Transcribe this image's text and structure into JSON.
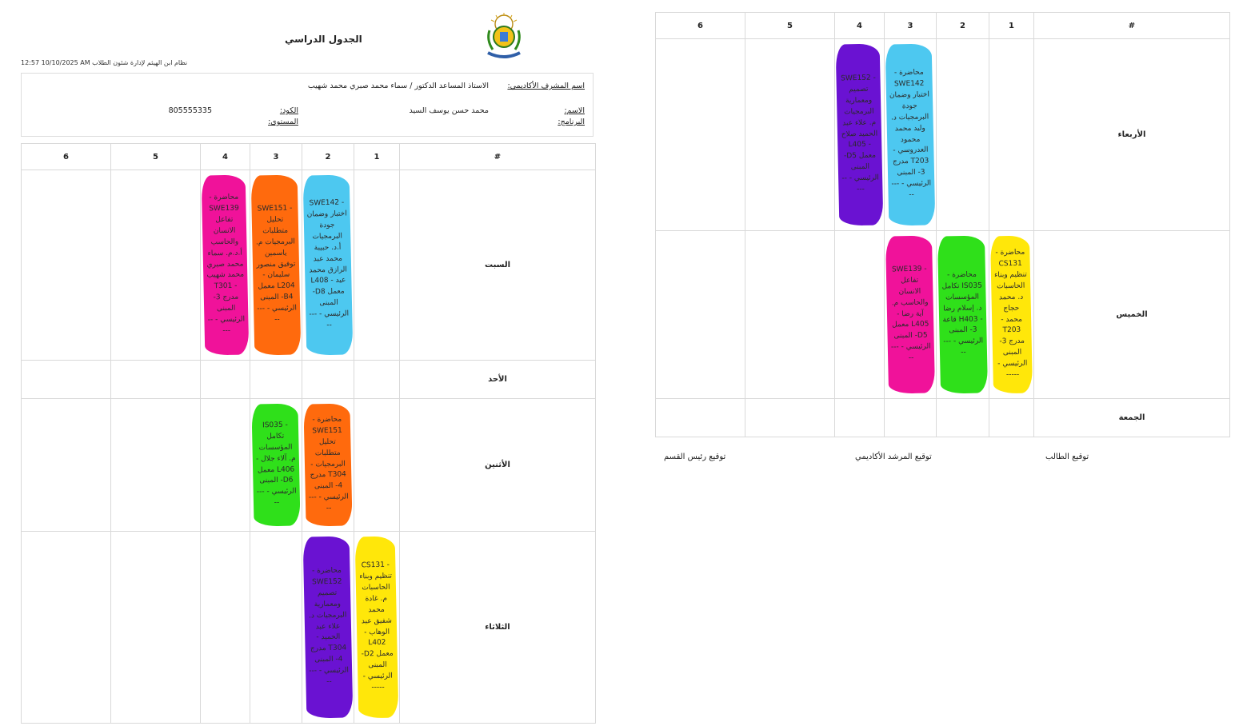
{
  "header": {
    "title": "الجدول الدراسي",
    "stamp": "12:57 10/10/2025 AM نظام ابن الهيثم لإدارة شئون الطلاب",
    "logo_label": "جامعة المنصورة"
  },
  "student_info": {
    "advisor_label": "اسم المشرف الأكاديمي:",
    "advisor_value": "الاستاذ المساعد الدكتور / سماء محمد صبري محمد شهيب",
    "name_label": "الاسم:",
    "name_value": "محمد حسن يوسف السيد",
    "code_label": "الكود:",
    "code_value": "805555335",
    "program_label": "البرنامج:",
    "level_label": "المستوى:"
  },
  "table_headers": [
    "#",
    "1",
    "2",
    "3",
    "4",
    "5",
    "6"
  ],
  "colors": {
    "cyan": "#4dc8f0",
    "orange": "#ff6a0d",
    "pink": "#f0129a",
    "green": "#2fe01a",
    "purple": "#6a12d2",
    "yellow": "#ffe70a"
  },
  "schedule_left": [
    {
      "day": "السبت",
      "slots": [
        null,
        {
          "color": "cyan",
          "text": "- SWE142 اختبار وضمان جودة البرمجيات أ.د. حبيبة محمد عبد الرازق محمد عيد - L408 معمل D8- المبنى الرئيسي - -----"
        },
        {
          "color": "orange",
          "text": "- SWE151 تحليل متطلبات البرمجيات م. ياسمين توفيق منصور سليمان - L204 معمل B4- المبنى الرئيسي - -----"
        },
        {
          "color": "pink",
          "text": "محاضرة - SWE139 تفاعل الانسان والحاسب أ.د.م. سماء محمد صبري محمد شهيب - T301 مدرج 3- المبنى الرئيسي - -----"
        },
        null,
        null
      ]
    },
    {
      "day": "الأحد",
      "slots": [
        null,
        null,
        null,
        null,
        null,
        null
      ]
    },
    {
      "day": "الأثنين",
      "slots": [
        null,
        {
          "color": "orange",
          "text": "محاضرة - SWE151 تحليل متطلبات البرمجيات - T304 مدرج 4- المبنى الرئيسي - -----"
        },
        {
          "color": "green",
          "text": "- IS035 تكامل المؤسسات م. آلاء جلال - L406 معمل D6- المبنى الرئيسي - -----"
        },
        null,
        null,
        null
      ]
    },
    {
      "day": "الثلاثاء",
      "slots": [
        {
          "color": "yellow",
          "text": "- CS131 تنظيم وبناء الحاسبات م. غادة محمد شفيق عبد الوهاب - L402 معمل D2- المبنى الرئيسي - -----"
        },
        {
          "color": "purple",
          "text": "محاضرة - SWE152 تصميم ومعمارية البرمجيات د. علاء عبد الحميد - T304 مدرج 4- المبنى الرئيسي - -----"
        },
        null,
        null,
        null,
        null
      ]
    }
  ],
  "schedule_right": [
    {
      "day": "الأربعاء",
      "slots": [
        null,
        null,
        {
          "color": "cyan",
          "text": "محاضرة - SWE142 اختبار وضمان جودة البرمجيات د. وليد محمد محمود العدروسي - T203 مدرج 3- المبنى الرئيسي - -----"
        },
        {
          "color": "purple",
          "text": "- SWE152 تصميم ومعمارية البرمجيات م. علاء عبد الحميد صلاح - L405 معمل D5- المبنى الرئيسي - -----"
        },
        null,
        null
      ]
    },
    {
      "day": "الخميس",
      "slots": [
        {
          "color": "yellow",
          "text": "محاضرة - CS131 تنظيم وبناء الحاسبات د. محمد حجاج محمد - T203 مدرج 3- المبنى الرئيسي - -----"
        },
        {
          "color": "green",
          "text": "محاضرة - IS035 تكامل المؤسسات د. إسلام رضا - H403 قاعة 3- المبنى الرئيسي - -----"
        },
        {
          "color": "pink",
          "text": "- SWE139 تفاعل الانسان والحاسب م. آية رضا - L405 معمل D5- المبنى الرئيسي - -----"
        },
        null,
        null,
        null
      ]
    },
    {
      "day": "الجمعة",
      "slots": [
        null,
        null,
        null,
        null,
        null,
        null
      ]
    }
  ],
  "signatures": {
    "student": "توقيع الطالب",
    "advisor": "توقيع المرشد الأكاديمي",
    "head": "توقيع رئيس القسم"
  }
}
